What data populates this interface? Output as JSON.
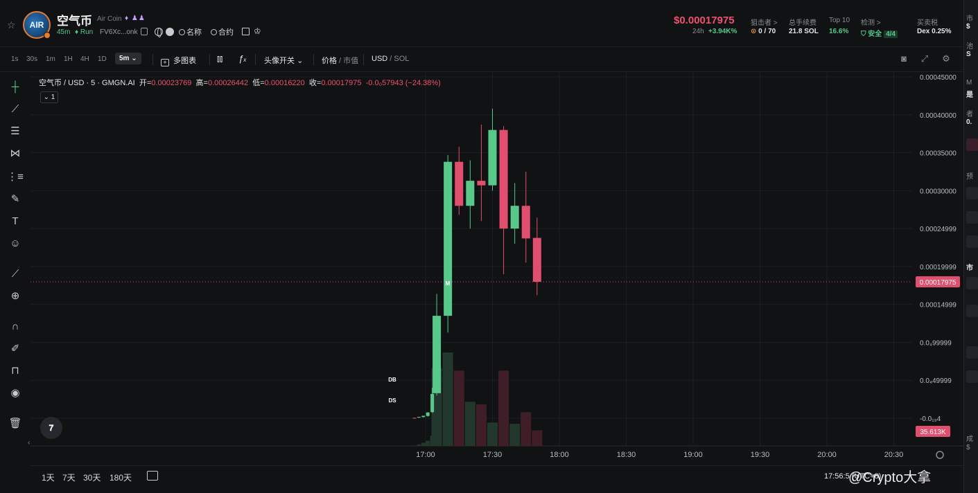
{
  "header": {
    "logo_text": "AIR",
    "token_name": "空气币",
    "token_sub": "Air Coin",
    "age": "45m",
    "status": "Run",
    "address": "FV6Xc...onk",
    "search_name": "名称",
    "search_contract": "合约",
    "price": "$0.00017975",
    "change_label": "24h",
    "change_value": "+3.94K%",
    "stats": [
      {
        "label": "狙击者 >",
        "value": "0 / 70"
      },
      {
        "label": "总手续费",
        "value": "21.8 SOL"
      },
      {
        "label": "Top 10",
        "value": "16.6%"
      },
      {
        "label": "检测 >",
        "value": "安全",
        "extra": "4/4"
      },
      {
        "label": "买卖税",
        "value": "Dex 0.25%"
      }
    ]
  },
  "toolbar": {
    "timeframes": [
      "1s",
      "30s",
      "1m",
      "1H",
      "4H",
      "1D"
    ],
    "active_timeframe": "5m",
    "multi_chart": "多图表",
    "avatar_toggle": "头像开关",
    "price_label": "价格",
    "mcap_label": "市值",
    "usd_label": "USD",
    "sol_label": "SOL"
  },
  "legend": {
    "symbol": "空气币 / USD · 5 · GMGN.AI",
    "open_label": "开=",
    "open": "0.00023769",
    "high_label": "高=",
    "high": "0.00026442",
    "low_label": "低=",
    "low": "0.00016220",
    "close_label": "收=",
    "close": "0.00017975",
    "change": "-0.0₀57943 (−24.38%)",
    "collapse": "1"
  },
  "markers": [
    {
      "text": "M",
      "color": "#3b7fd1"
    },
    {
      "text": "DB",
      "color": "#59c98b"
    },
    {
      "text": "DS",
      "color": "#e0506e"
    }
  ],
  "chart_data": {
    "type": "candlestick",
    "title": "空气币 / USD · 5 · GMGN.AI",
    "y_ticks": [
      "0.00045000",
      "0.00040000",
      "0.00035000",
      "0.00030000",
      "0.00024999",
      "0.00019999",
      "0.00014999",
      "0.0₄99999",
      "0.0₄49999",
      "-0.0₁₉4"
    ],
    "x_ticks": [
      "17:00",
      "17:30",
      "18:00",
      "18:30",
      "19:00",
      "19:30",
      "20:00",
      "20:30"
    ],
    "ylim": [
      -1e-08,
      0.00045
    ],
    "current_price_label": "0.00017975",
    "volume_label": "35.613K",
    "candles": [
      {
        "t": "16:55",
        "o": 5e-07,
        "h": 9e-07,
        "l": 1e-07,
        "c": 4e-07
      },
      {
        "t": "16:57",
        "o": 1e-06,
        "h": 1.6e-06,
        "l": 6e-07,
        "c": 1.8e-06
      },
      {
        "t": "16:59",
        "o": 1.6e-06,
        "h": 3e-06,
        "l": 1e-06,
        "c": 3.2e-06
      },
      {
        "t": "17:01",
        "o": 3e-06,
        "h": 8e-06,
        "l": 2e-06,
        "c": 7.5e-06
      },
      {
        "t": "17:03",
        "o": 8e-06,
        "h": 4e-05,
        "l": 7e-06,
        "c": 3.2e-05
      },
      {
        "t": "17:05",
        "o": 3.3e-05,
        "h": 0.000164,
        "l": 3e-05,
        "c": 0.000135
      },
      {
        "t": "17:10",
        "o": 0.000135,
        "h": 0.000347,
        "l": 0.000113,
        "c": 0.000338
      },
      {
        "t": "17:15",
        "o": 0.000338,
        "h": 0.000358,
        "l": 0.000268,
        "c": 0.00028
      },
      {
        "t": "17:20",
        "o": 0.00028,
        "h": 0.00034,
        "l": 0.00025,
        "c": 0.000313
      },
      {
        "t": "17:25",
        "o": 0.000313,
        "h": 0.000387,
        "l": 0.00026,
        "c": 0.000307
      },
      {
        "t": "17:30",
        "o": 0.000307,
        "h": 0.000408,
        "l": 0.0003,
        "c": 0.00038
      },
      {
        "t": "17:35",
        "o": 0.00038,
        "h": 0.000385,
        "l": 0.00019,
        "c": 0.00025
      },
      {
        "t": "17:40",
        "o": 0.00025,
        "h": 0.00031,
        "l": 0.00023,
        "c": 0.00028
      },
      {
        "t": "17:45",
        "o": 0.00028,
        "h": 0.000325,
        "l": 0.000205,
        "c": 0.000237
      },
      {
        "t": "17:50",
        "o": 0.0002377,
        "h": 0.0002644,
        "l": 0.0001622,
        "c": 0.0001798
      }
    ],
    "volumes": [
      {
        "t": "16:55",
        "v": 0.5,
        "up": false
      },
      {
        "t": "16:57",
        "v": 1.2,
        "up": true
      },
      {
        "t": "16:59",
        "v": 2.4,
        "up": true
      },
      {
        "t": "17:01",
        "v": 4.0,
        "up": true
      },
      {
        "t": "17:03",
        "v": 8.0,
        "up": true
      },
      {
        "t": "17:05",
        "v": 60.0,
        "up": true
      },
      {
        "t": "17:10",
        "v": 72.0,
        "up": true
      },
      {
        "t": "17:15",
        "v": 58.0,
        "up": false
      },
      {
        "t": "17:20",
        "v": 34.0,
        "up": true
      },
      {
        "t": "17:25",
        "v": 32.0,
        "up": false
      },
      {
        "t": "17:30",
        "v": 18.0,
        "up": true
      },
      {
        "t": "17:35",
        "v": 58.0,
        "up": false
      },
      {
        "t": "17:40",
        "v": 17.0,
        "up": true
      },
      {
        "t": "17:45",
        "v": 26.0,
        "up": false
      },
      {
        "t": "17:50",
        "v": 12.0,
        "up": false
      }
    ]
  },
  "bottom": {
    "ranges": [
      "1天",
      "7天",
      "30天",
      "180天"
    ],
    "time": "17:56:5",
    "utc": "(UTC+8)",
    "watermark": "@Crypto大拿"
  },
  "right_panel": {
    "items": [
      "市",
      "$",
      "池",
      "S",
      "M",
      "是",
      "者",
      "0.",
      "预",
      "市",
      "成",
      "$"
    ]
  },
  "colors": {
    "up": "#59c98b",
    "down": "#e0506e",
    "background": "#111214"
  }
}
